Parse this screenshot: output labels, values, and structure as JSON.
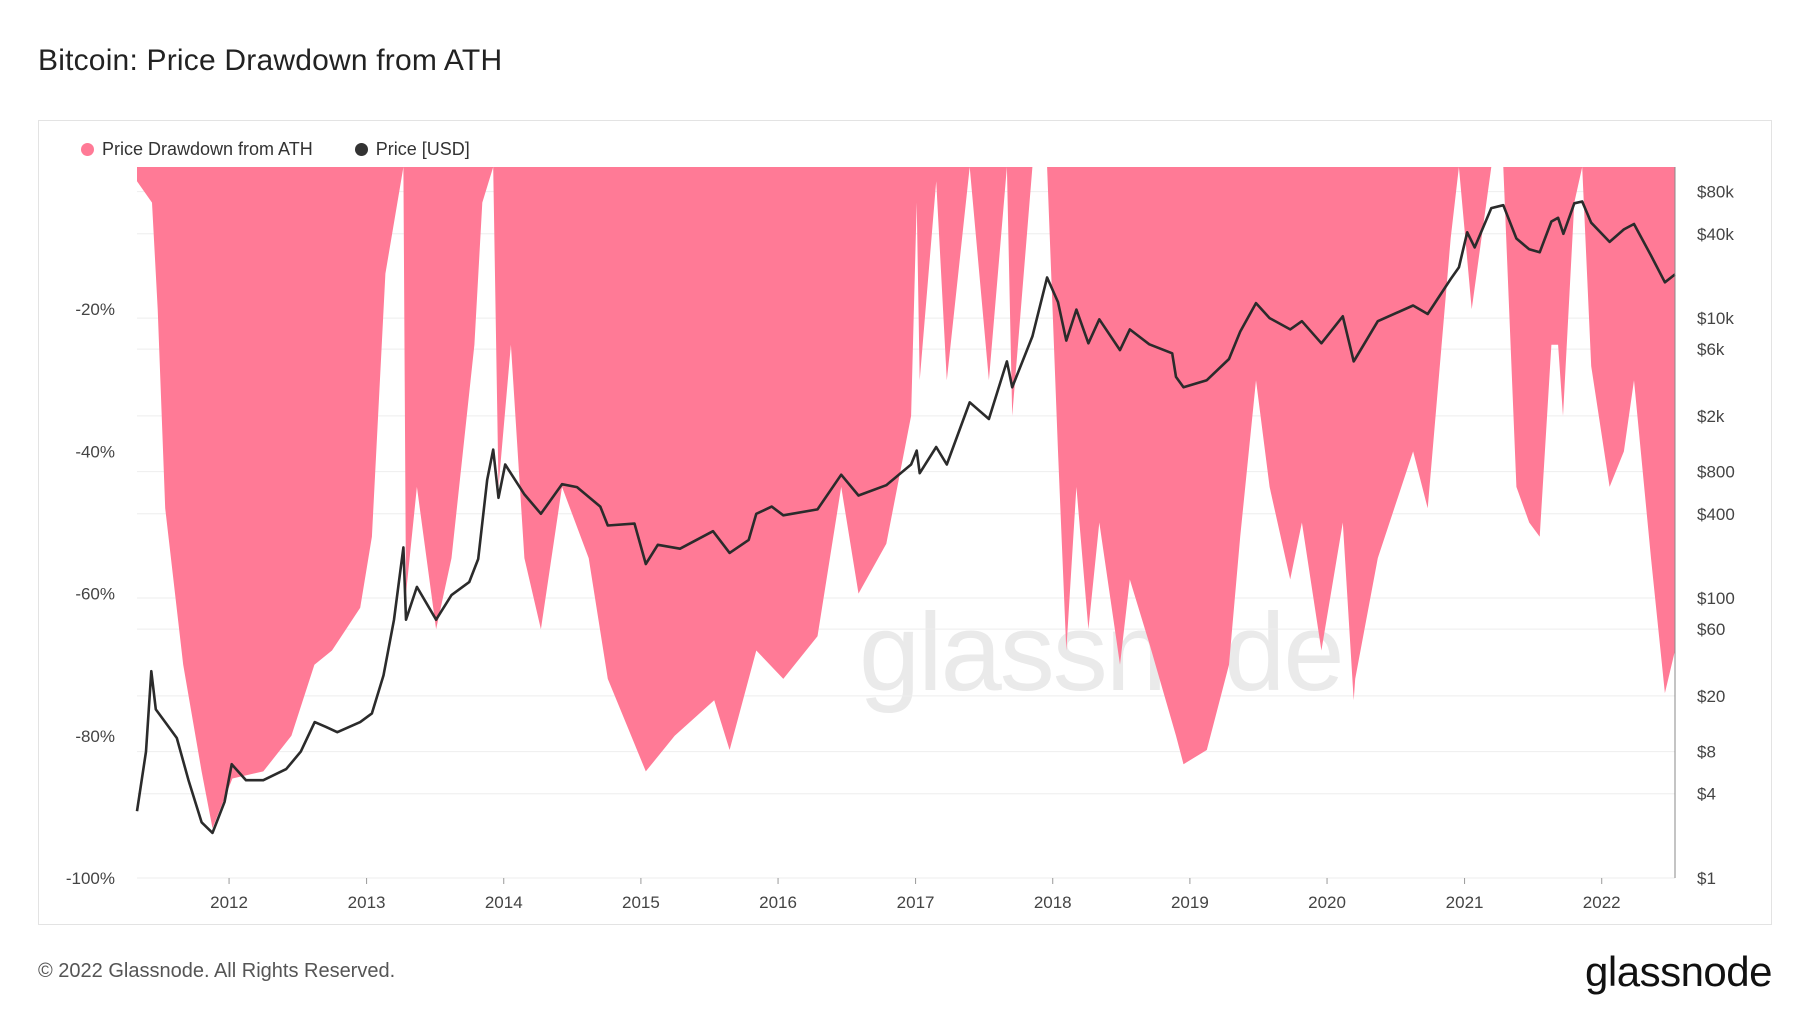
{
  "header": {
    "title": "Bitcoin: Price Drawdown from ATH"
  },
  "legend": {
    "items": [
      {
        "label": "Price Drawdown from ATH",
        "color": "#ff7a96"
      },
      {
        "label": "Price [USD]",
        "color": "#333333"
      }
    ]
  },
  "watermark": {
    "text": "glassnode"
  },
  "footer": {
    "copyright": "© 2022 Glassnode. All Rights Reserved.",
    "brand": "glassnode"
  },
  "colors": {
    "drawdown_fill": "#ff7a96",
    "price_line": "#2b2b2b",
    "grid": "#eeeeee"
  },
  "chart_data": {
    "type": "area",
    "x_range": [
      "2011-05-01",
      "2022-07-15"
    ],
    "x_ticks": [
      "2012",
      "2013",
      "2014",
      "2015",
      "2016",
      "2017",
      "2018",
      "2019",
      "2020",
      "2021",
      "2022"
    ],
    "y_left": {
      "ticks": [
        "-20%",
        "-40%",
        "-60%",
        "-80%",
        "-100%"
      ],
      "tick_values": [
        -20,
        -40,
        -60,
        -80,
        -100
      ],
      "range": [
        -100,
        0
      ]
    },
    "y_right": {
      "scale": "log",
      "ticks": [
        "$80k",
        "$40k",
        "$10k",
        "$6k",
        "$2k",
        "$800",
        "$400",
        "$100",
        "$60",
        "$20",
        "$8",
        "$4",
        "$1"
      ],
      "tick_values": [
        80000,
        40000,
        10000,
        6000,
        2000,
        800,
        400,
        100,
        60,
        20,
        8,
        4,
        1
      ],
      "range": [
        1,
        120000
      ]
    },
    "grid": true,
    "legend_position": "top-left",
    "series": [
      {
        "name": "Price Drawdown from ATH",
        "axis": "left",
        "type": "area",
        "points": [
          [
            "2011-05-01",
            -2
          ],
          [
            "2011-06-10",
            -5
          ],
          [
            "2011-06-25",
            -20
          ],
          [
            "2011-07-15",
            -48
          ],
          [
            "2011-09-01",
            -70
          ],
          [
            "2011-10-20",
            -85
          ],
          [
            "2011-11-18",
            -93
          ],
          [
            "2012-01-10",
            -86
          ],
          [
            "2012-04-01",
            -85
          ],
          [
            "2012-06-15",
            -80
          ],
          [
            "2012-08-15",
            -70
          ],
          [
            "2012-10-01",
            -68
          ],
          [
            "2012-12-15",
            -62
          ],
          [
            "2013-01-15",
            -52
          ],
          [
            "2013-02-20",
            -15
          ],
          [
            "2013-04-09",
            0
          ],
          [
            "2013-04-16",
            -60
          ],
          [
            "2013-05-15",
            -45
          ],
          [
            "2013-07-05",
            -65
          ],
          [
            "2013-08-15",
            -55
          ],
          [
            "2013-10-15",
            -25
          ],
          [
            "2013-11-05",
            -5
          ],
          [
            "2013-12-04",
            0
          ],
          [
            "2013-12-18",
            -45
          ],
          [
            "2014-01-20",
            -25
          ],
          [
            "2014-02-25",
            -55
          ],
          [
            "2014-04-10",
            -65
          ],
          [
            "2014-06-05",
            -45
          ],
          [
            "2014-08-15",
            -55
          ],
          [
            "2014-10-05",
            -72
          ],
          [
            "2015-01-14",
            -85
          ],
          [
            "2015-04-01",
            -80
          ],
          [
            "2015-07-15",
            -75
          ],
          [
            "2015-08-25",
            -82
          ],
          [
            "2015-11-04",
            -68
          ],
          [
            "2016-01-15",
            -72
          ],
          [
            "2016-04-15",
            -66
          ],
          [
            "2016-06-17",
            -45
          ],
          [
            "2016-08-02",
            -60
          ],
          [
            "2016-10-15",
            -53
          ],
          [
            "2016-12-20",
            -35
          ],
          [
            "2017-01-04",
            -5
          ],
          [
            "2017-01-12",
            -30
          ],
          [
            "2017-02-25",
            -2
          ],
          [
            "2017-03-25",
            -30
          ],
          [
            "2017-05-25",
            0
          ],
          [
            "2017-07-15",
            -30
          ],
          [
            "2017-09-01",
            0
          ],
          [
            "2017-09-15",
            -35
          ],
          [
            "2017-11-08",
            0
          ],
          [
            "2017-12-17",
            0
          ],
          [
            "2018-01-15",
            -40
          ],
          [
            "2018-02-06",
            -68
          ],
          [
            "2018-03-05",
            -45
          ],
          [
            "2018-04-06",
            -65
          ],
          [
            "2018-05-05",
            -50
          ],
          [
            "2018-06-29",
            -70
          ],
          [
            "2018-07-25",
            -58
          ],
          [
            "2018-09-15",
            -67
          ],
          [
            "2018-11-25",
            -80
          ],
          [
            "2018-12-15",
            -84
          ],
          [
            "2019-02-15",
            -82
          ],
          [
            "2019-04-15",
            -70
          ],
          [
            "2019-05-15",
            -52
          ],
          [
            "2019-06-26",
            -30
          ],
          [
            "2019-08-01",
            -45
          ],
          [
            "2019-09-25",
            -58
          ],
          [
            "2019-10-26",
            -50
          ],
          [
            "2019-12-17",
            -68
          ],
          [
            "2020-02-12",
            -50
          ],
          [
            "2020-03-12",
            -75
          ],
          [
            "2020-03-16",
            -72
          ],
          [
            "2020-05-15",
            -55
          ],
          [
            "2020-08-17",
            -40
          ],
          [
            "2020-09-25",
            -48
          ],
          [
            "2020-11-25",
            -10
          ],
          [
            "2020-12-17",
            0
          ],
          [
            "2021-01-20",
            -20
          ],
          [
            "2021-03-13",
            0
          ],
          [
            "2021-04-14",
            0
          ],
          [
            "2021-05-19",
            -45
          ],
          [
            "2021-06-22",
            -50
          ],
          [
            "2021-07-20",
            -52
          ],
          [
            "2021-08-20",
            -25
          ],
          [
            "2021-09-07",
            -25
          ],
          [
            "2021-09-20",
            -35
          ],
          [
            "2021-10-20",
            -5
          ],
          [
            "2021-11-10",
            0
          ],
          [
            "2021-12-04",
            -28
          ],
          [
            "2022-01-22",
            -45
          ],
          [
            "2022-03-01",
            -40
          ],
          [
            "2022-03-28",
            -30
          ],
          [
            "2022-05-12",
            -55
          ],
          [
            "2022-06-18",
            -74
          ],
          [
            "2022-07-15",
            -68
          ]
        ]
      },
      {
        "name": "Price [USD]",
        "axis": "right",
        "type": "line",
        "points": [
          [
            "2011-05-01",
            3
          ],
          [
            "2011-05-25",
            8
          ],
          [
            "2011-06-08",
            30
          ],
          [
            "2011-06-20",
            16
          ],
          [
            "2011-07-15",
            13
          ],
          [
            "2011-08-15",
            10
          ],
          [
            "2011-09-15",
            5
          ],
          [
            "2011-10-20",
            2.5
          ],
          [
            "2011-11-18",
            2.1
          ],
          [
            "2011-12-20",
            3.5
          ],
          [
            "2012-01-08",
            6.5
          ],
          [
            "2012-02-15",
            5
          ],
          [
            "2012-04-01",
            5
          ],
          [
            "2012-06-01",
            6
          ],
          [
            "2012-07-10",
            8
          ],
          [
            "2012-08-16",
            13
          ],
          [
            "2012-09-15",
            12
          ],
          [
            "2012-10-15",
            11
          ],
          [
            "2012-12-15",
            13
          ],
          [
            "2013-01-15",
            15
          ],
          [
            "2013-02-15",
            28
          ],
          [
            "2013-03-15",
            70
          ],
          [
            "2013-04-09",
            230
          ],
          [
            "2013-04-16",
            70
          ],
          [
            "2013-05-15",
            120
          ],
          [
            "2013-07-05",
            70
          ],
          [
            "2013-08-15",
            105
          ],
          [
            "2013-10-01",
            130
          ],
          [
            "2013-10-25",
            190
          ],
          [
            "2013-11-18",
            700
          ],
          [
            "2013-12-04",
            1150
          ],
          [
            "2013-12-18",
            520
          ],
          [
            "2014-01-05",
            900
          ],
          [
            "2014-02-25",
            550
          ],
          [
            "2014-04-10",
            400
          ],
          [
            "2014-06-05",
            650
          ],
          [
            "2014-07-15",
            620
          ],
          [
            "2014-09-15",
            450
          ],
          [
            "2014-10-05",
            330
          ],
          [
            "2014-12-15",
            340
          ],
          [
            "2015-01-14",
            175
          ],
          [
            "2015-02-15",
            240
          ],
          [
            "2015-04-15",
            225
          ],
          [
            "2015-07-12",
            300
          ],
          [
            "2015-08-25",
            210
          ],
          [
            "2015-10-15",
            260
          ],
          [
            "2015-11-04",
            400
          ],
          [
            "2015-12-15",
            450
          ],
          [
            "2016-01-15",
            390
          ],
          [
            "2016-04-15",
            430
          ],
          [
            "2016-06-17",
            760
          ],
          [
            "2016-08-02",
            540
          ],
          [
            "2016-10-15",
            640
          ],
          [
            "2016-12-20",
            900
          ],
          [
            "2017-01-04",
            1130
          ],
          [
            "2017-01-12",
            780
          ],
          [
            "2017-02-25",
            1200
          ],
          [
            "2017-03-25",
            900
          ],
          [
            "2017-05-25",
            2500
          ],
          [
            "2017-07-15",
            1900
          ],
          [
            "2017-09-01",
            4900
          ],
          [
            "2017-09-15",
            3200
          ],
          [
            "2017-11-08",
            7400
          ],
          [
            "2017-12-17",
            19500
          ],
          [
            "2018-01-15",
            13000
          ],
          [
            "2018-02-06",
            6900
          ],
          [
            "2018-03-05",
            11500
          ],
          [
            "2018-04-06",
            6600
          ],
          [
            "2018-05-05",
            9800
          ],
          [
            "2018-06-29",
            5900
          ],
          [
            "2018-07-25",
            8300
          ],
          [
            "2018-09-15",
            6500
          ],
          [
            "2018-11-15",
            5600
          ],
          [
            "2018-11-25",
            3800
          ],
          [
            "2018-12-15",
            3200
          ],
          [
            "2019-02-15",
            3600
          ],
          [
            "2019-04-15",
            5100
          ],
          [
            "2019-05-15",
            8000
          ],
          [
            "2019-06-26",
            12800
          ],
          [
            "2019-08-01",
            10000
          ],
          [
            "2019-09-25",
            8300
          ],
          [
            "2019-10-26",
            9500
          ],
          [
            "2019-12-17",
            6600
          ],
          [
            "2020-02-12",
            10300
          ],
          [
            "2020-03-12",
            4900
          ],
          [
            "2020-03-16",
            5100
          ],
          [
            "2020-05-15",
            9500
          ],
          [
            "2020-08-17",
            12300
          ],
          [
            "2020-09-25",
            10700
          ],
          [
            "2020-11-25",
            19000
          ],
          [
            "2020-12-17",
            23000
          ],
          [
            "2021-01-08",
            41000
          ],
          [
            "2021-01-28",
            32000
          ],
          [
            "2021-03-13",
            61000
          ],
          [
            "2021-04-14",
            64000
          ],
          [
            "2021-05-19",
            37000
          ],
          [
            "2021-06-22",
            31000
          ],
          [
            "2021-07-20",
            29500
          ],
          [
            "2021-08-20",
            49000
          ],
          [
            "2021-09-07",
            52000
          ],
          [
            "2021-09-21",
            40000
          ],
          [
            "2021-10-20",
            66000
          ],
          [
            "2021-11-10",
            68000
          ],
          [
            "2021-12-04",
            48000
          ],
          [
            "2022-01-22",
            35000
          ],
          [
            "2022-03-01",
            43000
          ],
          [
            "2022-03-28",
            47000
          ],
          [
            "2022-05-12",
            28000
          ],
          [
            "2022-06-18",
            18000
          ],
          [
            "2022-07-15",
            20500
          ]
        ]
      }
    ]
  }
}
